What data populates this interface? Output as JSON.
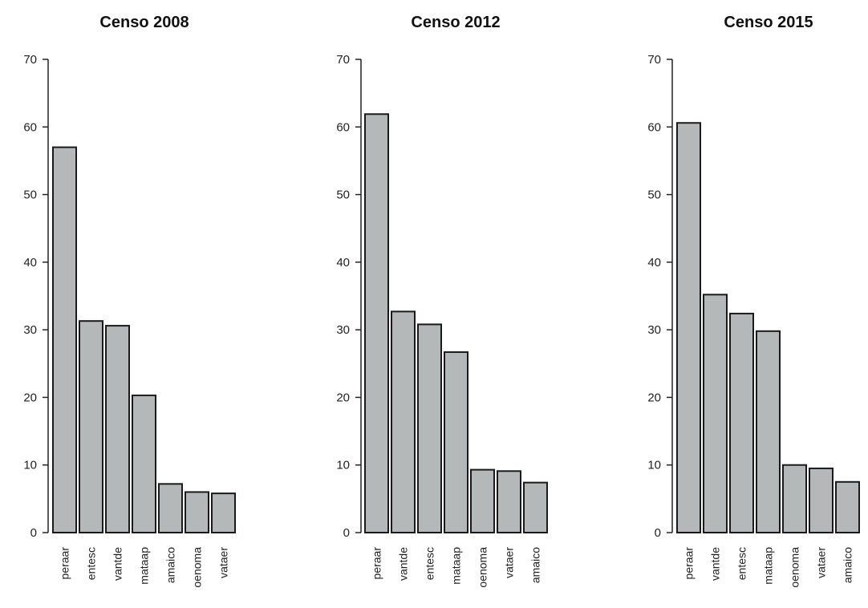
{
  "chart_data": [
    {
      "type": "bar",
      "title": "Censo 2008",
      "categories": [
        "peraar",
        "entesc",
        "vantde",
        "mataap",
        "amaico",
        "oenoma",
        "vataer"
      ],
      "values": [
        57,
        31.3,
        30.6,
        20.3,
        7.2,
        6,
        5.8
      ],
      "ylim": [
        0,
        70
      ],
      "yticks": [
        "0",
        "10",
        "20",
        "30",
        "40",
        "50",
        "60",
        "70"
      ],
      "xlabel": "",
      "ylabel": "",
      "bar_color": "#b5b8b8",
      "grid": false
    },
    {
      "type": "bar",
      "title": "Censo 2012",
      "categories": [
        "peraar",
        "vantde",
        "entesc",
        "mataap",
        "oenoma",
        "vataer",
        "amaico"
      ],
      "values": [
        61.9,
        32.7,
        30.8,
        26.7,
        9.3,
        9.1,
        7.4
      ],
      "ylim": [
        0,
        70
      ],
      "yticks": [
        "0",
        "10",
        "20",
        "30",
        "40",
        "50",
        "60",
        "70"
      ],
      "xlabel": "",
      "ylabel": "",
      "bar_color": "#b5b8b8",
      "grid": false
    },
    {
      "type": "bar",
      "title": "Censo 2015",
      "categories": [
        "peraar",
        "vantde",
        "entesc",
        "mataap",
        "oenoma",
        "vataer",
        "amaico"
      ],
      "values": [
        60.6,
        35.2,
        32.4,
        29.8,
        10,
        9.5,
        7.5
      ],
      "ylim": [
        0,
        70
      ],
      "yticks": [
        "0",
        "10",
        "20",
        "30",
        "40",
        "50",
        "60",
        "70"
      ],
      "xlabel": "",
      "ylabel": "",
      "bar_color": "#b5b8b8",
      "grid": false
    }
  ]
}
